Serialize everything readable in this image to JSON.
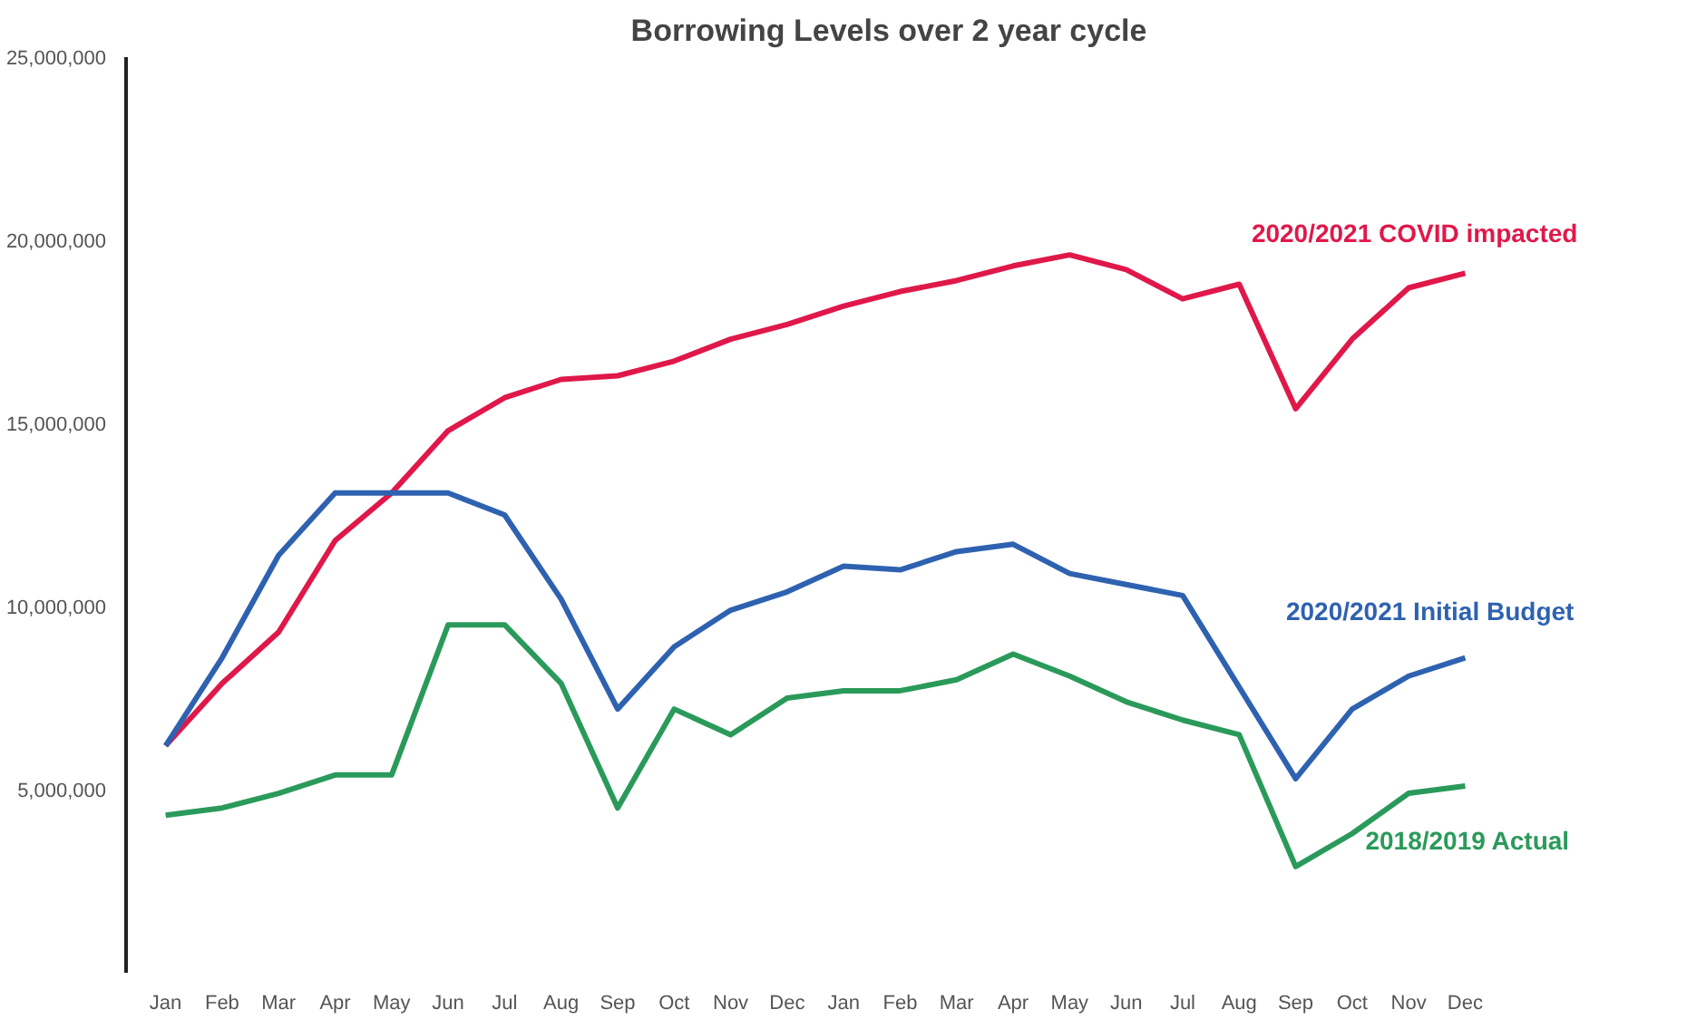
{
  "chart_data": {
    "type": "line",
    "title": "Borrowing Levels over 2 year cycle",
    "categories": [
      "Jan",
      "Feb",
      "Mar",
      "Apr",
      "May",
      "Jun",
      "Jul",
      "Aug",
      "Sep",
      "Oct",
      "Nov",
      "Dec",
      "Jan",
      "Feb",
      "Mar",
      "Apr",
      "May",
      "Jun",
      "Jul",
      "Aug",
      "Sep",
      "Oct",
      "Nov",
      "Dec"
    ],
    "series": [
      {
        "name": "2020/2021 COVID impacted",
        "color": "#e0184a",
        "values": [
          6200000,
          7900000,
          9300000,
          11800000,
          13100000,
          14800000,
          15700000,
          16200000,
          16300000,
          16700000,
          17300000,
          17700000,
          18200000,
          18600000,
          18900000,
          19300000,
          19600000,
          19200000,
          18400000,
          18800000,
          15400000,
          17300000,
          18700000,
          19100000
        ]
      },
      {
        "name": "2020/2021 Initial Budget",
        "color": "#2e62b0",
        "values": [
          6200000,
          8600000,
          11400000,
          13100000,
          13100000,
          13100000,
          12500000,
          10200000,
          7200000,
          8900000,
          9900000,
          10400000,
          11100000,
          11000000,
          11500000,
          11700000,
          10900000,
          10600000,
          10300000,
          7800000,
          5300000,
          7200000,
          8100000,
          8600000
        ]
      },
      {
        "name": "2018/2019 Actual",
        "color": "#2a9a5a",
        "values": [
          4300000,
          4500000,
          4900000,
          5400000,
          5400000,
          9500000,
          9500000,
          7900000,
          4500000,
          7200000,
          6500000,
          7500000,
          7700000,
          7700000,
          8000000,
          8700000,
          8100000,
          7400000,
          6900000,
          6500000,
          2900000,
          3800000,
          4900000,
          5100000
        ]
      }
    ],
    "ylim": [
      0,
      25000000
    ],
    "yticks": [
      {
        "value": 5000000,
        "label": "5,000,000"
      },
      {
        "value": 10000000,
        "label": "10,000,000"
      },
      {
        "value": 15000000,
        "label": "15,000,000"
      },
      {
        "value": 20000000,
        "label": "20,000,000"
      },
      {
        "value": 25000000,
        "label": "25,000,000"
      }
    ],
    "grid": false,
    "legend": false,
    "marker": "none",
    "line_style": "solid"
  }
}
